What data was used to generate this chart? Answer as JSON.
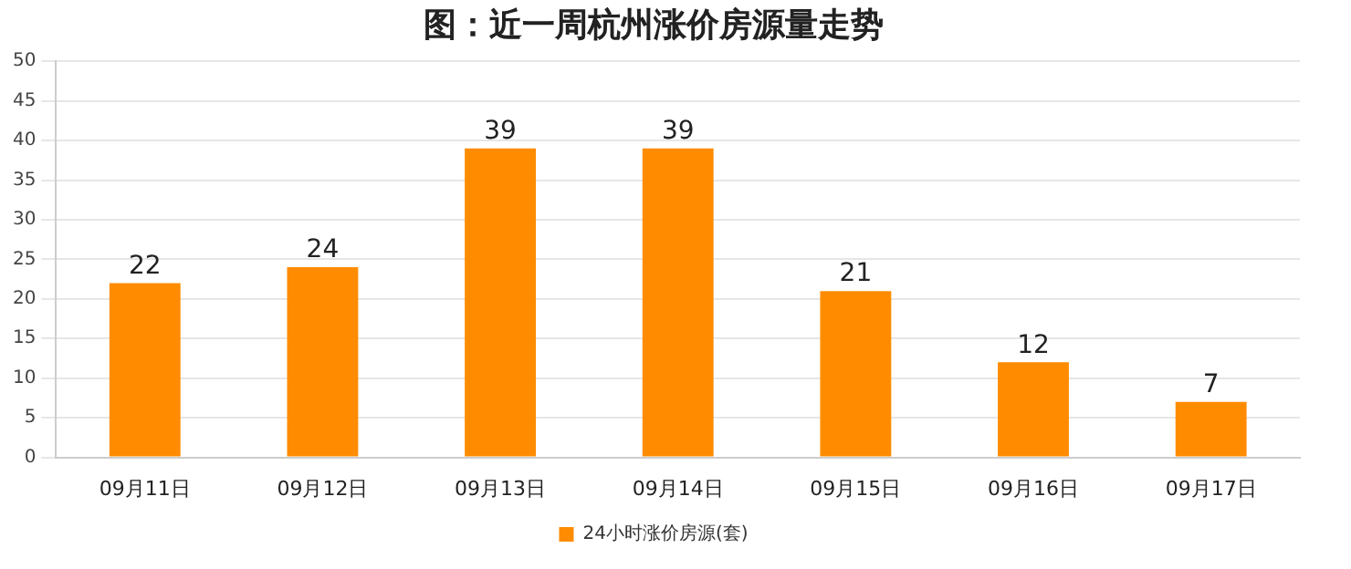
{
  "chart_data": {
    "type": "bar",
    "title": "图：近一周杭州涨价房源量走势",
    "categories": [
      "09月11日",
      "09月12日",
      "09月13日",
      "09月14日",
      "09月15日",
      "09月16日",
      "09月17日"
    ],
    "series": [
      {
        "name": "24小时涨价房源(套)",
        "color": "#ff8c00",
        "values": [
          22,
          24,
          39,
          39,
          21,
          12,
          7
        ]
      }
    ],
    "ylim": [
      0,
      50
    ],
    "yticks": [
      0,
      5,
      10,
      15,
      20,
      25,
      30,
      35,
      40,
      45,
      50
    ],
    "grid": "y",
    "legend": "bottom",
    "data_labels": true
  }
}
